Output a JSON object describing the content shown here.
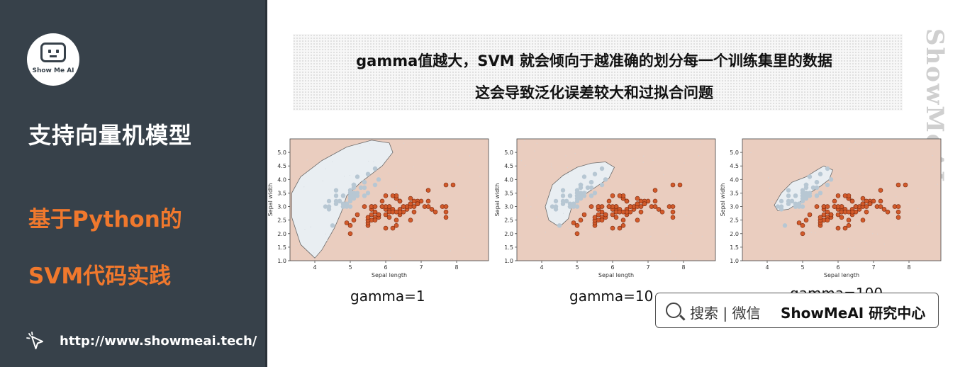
{
  "sidebar": {
    "logo_text": "Show Me AI",
    "title": "支持向量机模型",
    "subtitle_line1": "基于Python的",
    "subtitle_line2": "SVM代码实践",
    "url": "http://www.showmeai.tech/",
    "accent_color": "#f0782d"
  },
  "headline": {
    "line1": "gamma值越大，SVM 就会倾向于越准确的划分每一个训练集里的数据",
    "line2": "这会导致泛化误差较大和过拟合问题"
  },
  "watermark": "ShowMeAI",
  "search": {
    "label": "搜索 | 微信",
    "brand": "ShowMeAI 研究中心"
  },
  "chart_data": [
    {
      "type": "scatter",
      "caption": "gamma=1",
      "xlabel": "Sepal length",
      "ylabel": "Sepal width",
      "xlim": [
        3.3,
        8.9
      ],
      "ylim": [
        1.0,
        5.5
      ],
      "xticks": [
        "4",
        "5",
        "6",
        "7",
        "8"
      ],
      "yticks": [
        "1.0",
        "1.5",
        "2.0",
        "2.5",
        "3.0",
        "3.5",
        "4.0",
        "4.5",
        "5.0"
      ],
      "region_colors": {
        "class0": "#e9eef2",
        "class1": "#eacdbf"
      }
    },
    {
      "type": "scatter",
      "caption": "gamma=10",
      "xlabel": "Sepal length",
      "ylabel": "Sepal width",
      "xlim": [
        3.3,
        8.9
      ],
      "ylim": [
        1.0,
        5.5
      ],
      "xticks": [
        "4",
        "5",
        "6",
        "7",
        "8"
      ],
      "yticks": [
        "1.0",
        "1.5",
        "2.0",
        "2.5",
        "3.0",
        "3.5",
        "4.0",
        "4.5",
        "5.0"
      ],
      "region_colors": {
        "class0": "#e9eef2",
        "class1": "#eacdbf"
      }
    },
    {
      "type": "scatter",
      "caption": "gamma=100",
      "xlabel": "Sepal length",
      "ylabel": "Sepal width",
      "xlim": [
        3.3,
        8.9
      ],
      "ylim": [
        1.0,
        5.5
      ],
      "xticks": [
        "4",
        "5",
        "6",
        "7",
        "8"
      ],
      "yticks": [
        "1.0",
        "1.5",
        "2.0",
        "2.5",
        "3.0",
        "3.5",
        "4.0",
        "4.5",
        "5.0"
      ],
      "region_colors": {
        "class0": "#e9eef2",
        "class1": "#eacdbf"
      }
    }
  ],
  "points": {
    "class0": [
      [
        5.1,
        3.5
      ],
      [
        4.9,
        3.0
      ],
      [
        4.7,
        3.2
      ],
      [
        4.6,
        3.1
      ],
      [
        5.0,
        3.6
      ],
      [
        5.4,
        3.9
      ],
      [
        4.6,
        3.4
      ],
      [
        5.0,
        3.4
      ],
      [
        4.4,
        2.9
      ],
      [
        4.9,
        3.1
      ],
      [
        5.4,
        3.7
      ],
      [
        4.8,
        3.4
      ],
      [
        4.8,
        3.0
      ],
      [
        4.3,
        3.0
      ],
      [
        5.8,
        4.0
      ],
      [
        5.7,
        4.4
      ],
      [
        5.4,
        3.9
      ],
      [
        5.1,
        3.5
      ],
      [
        5.7,
        3.8
      ],
      [
        5.1,
        3.8
      ],
      [
        5.4,
        3.4
      ],
      [
        5.1,
        3.7
      ],
      [
        4.6,
        3.6
      ],
      [
        5.1,
        3.3
      ],
      [
        4.8,
        3.4
      ],
      [
        5.0,
        3.0
      ],
      [
        5.0,
        3.4
      ],
      [
        5.2,
        3.5
      ],
      [
        5.2,
        3.4
      ],
      [
        4.7,
        3.2
      ],
      [
        4.8,
        3.1
      ],
      [
        5.4,
        3.4
      ],
      [
        5.2,
        4.1
      ],
      [
        5.5,
        4.2
      ],
      [
        4.9,
        3.1
      ],
      [
        5.0,
        3.2
      ],
      [
        5.5,
        3.5
      ],
      [
        4.4,
        3.0
      ],
      [
        5.1,
        3.4
      ],
      [
        5.0,
        3.5
      ],
      [
        4.5,
        2.3
      ],
      [
        4.4,
        3.2
      ],
      [
        5.0,
        3.5
      ],
      [
        5.1,
        3.8
      ],
      [
        4.8,
        3.0
      ],
      [
        5.1,
        3.8
      ],
      [
        4.6,
        3.2
      ],
      [
        5.3,
        3.7
      ],
      [
        5.0,
        3.3
      ]
    ],
    "class1": [
      [
        7.0,
        3.2
      ],
      [
        6.4,
        3.2
      ],
      [
        6.9,
        3.1
      ],
      [
        5.5,
        2.3
      ],
      [
        6.5,
        2.8
      ],
      [
        5.7,
        2.8
      ],
      [
        6.3,
        3.3
      ],
      [
        4.9,
        2.4
      ],
      [
        6.6,
        2.9
      ],
      [
        5.2,
        2.7
      ],
      [
        5.0,
        2.0
      ],
      [
        5.9,
        3.0
      ],
      [
        6.0,
        2.2
      ],
      [
        6.1,
        2.9
      ],
      [
        5.6,
        2.9
      ],
      [
        6.7,
        3.1
      ],
      [
        5.6,
        3.0
      ],
      [
        5.8,
        2.7
      ],
      [
        6.2,
        2.2
      ],
      [
        5.6,
        2.5
      ],
      [
        5.9,
        3.2
      ],
      [
        6.1,
        2.8
      ],
      [
        6.3,
        2.5
      ],
      [
        6.1,
        2.8
      ],
      [
        6.4,
        2.9
      ],
      [
        6.6,
        3.0
      ],
      [
        6.8,
        2.8
      ],
      [
        6.7,
        3.0
      ],
      [
        6.0,
        2.9
      ],
      [
        5.7,
        2.6
      ],
      [
        5.5,
        2.4
      ],
      [
        5.8,
        2.7
      ],
      [
        6.0,
        2.7
      ],
      [
        5.4,
        3.0
      ],
      [
        6.0,
        3.4
      ],
      [
        6.7,
        3.1
      ],
      [
        6.3,
        2.3
      ],
      [
        5.6,
        3.0
      ],
      [
        5.5,
        2.5
      ],
      [
        5.5,
        2.6
      ],
      [
        6.1,
        3.0
      ],
      [
        5.8,
        2.6
      ],
      [
        5.0,
        2.3
      ],
      [
        5.6,
        2.7
      ],
      [
        5.7,
        3.0
      ],
      [
        6.2,
        2.9
      ],
      [
        5.1,
        2.5
      ],
      [
        6.3,
        3.3
      ],
      [
        5.8,
        2.7
      ],
      [
        7.1,
        3.0
      ],
      [
        6.5,
        3.0
      ],
      [
        7.6,
        3.0
      ],
      [
        7.3,
        2.9
      ],
      [
        6.7,
        2.5
      ],
      [
        7.2,
        3.6
      ],
      [
        6.4,
        2.7
      ],
      [
        6.8,
        3.0
      ],
      [
        5.7,
        2.5
      ],
      [
        6.4,
        3.2
      ],
      [
        7.7,
        3.8
      ],
      [
        7.7,
        2.6
      ],
      [
        6.9,
        3.2
      ],
      [
        7.7,
        2.8
      ],
      [
        6.7,
        3.3
      ],
      [
        7.2,
        3.2
      ],
      [
        6.2,
        2.8
      ],
      [
        6.1,
        3.0
      ],
      [
        6.4,
        2.8
      ],
      [
        7.2,
        3.0
      ],
      [
        7.4,
        2.8
      ],
      [
        7.9,
        3.8
      ],
      [
        6.3,
        2.8
      ],
      [
        6.1,
        2.6
      ],
      [
        7.7,
        3.0
      ],
      [
        6.3,
        3.4
      ],
      [
        6.0,
        3.0
      ],
      [
        6.9,
        3.1
      ],
      [
        6.7,
        3.1
      ],
      [
        6.9,
        3.1
      ],
      [
        5.8,
        2.7
      ],
      [
        6.8,
        3.2
      ],
      [
        6.5,
        3.0
      ],
      [
        6.2,
        3.4
      ],
      [
        5.9,
        3.0
      ]
    ]
  }
}
